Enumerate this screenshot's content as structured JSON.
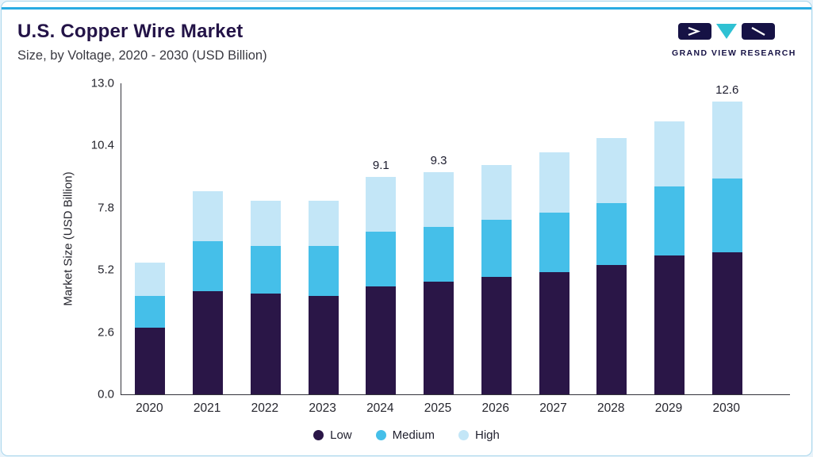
{
  "page": {
    "title": "U.S. Copper Wire Market",
    "subtitle": "Size, by Voltage, 2020 - 2030 (USD Billion)",
    "brand": "GRAND VIEW RESEARCH"
  },
  "colors": {
    "low": "#2a1647",
    "medium": "#45bfe9",
    "high": "#c3e6f7",
    "accent": "#29abe2",
    "title": "#231347"
  },
  "chart_data": {
    "type": "bar",
    "stacked": true,
    "title": "U.S. Copper Wire Market Size, by Voltage, 2020 - 2030 (USD Billion)",
    "categories": [
      "2020",
      "2021",
      "2022",
      "2023",
      "2024",
      "2025",
      "2026",
      "2027",
      "2028",
      "2029",
      "2030"
    ],
    "series": [
      {
        "name": "Low",
        "color_key": "low",
        "values": [
          2.8,
          4.3,
          4.2,
          4.1,
          4.5,
          4.7,
          4.9,
          5.1,
          5.4,
          5.8,
          6.1
        ]
      },
      {
        "name": "Medium",
        "color_key": "medium",
        "values": [
          1.3,
          2.1,
          2.0,
          2.1,
          2.3,
          2.3,
          2.4,
          2.5,
          2.6,
          2.9,
          3.2
        ]
      },
      {
        "name": "High",
        "color_key": "high",
        "values": [
          1.4,
          2.1,
          1.9,
          1.9,
          2.3,
          2.3,
          2.3,
          2.5,
          2.7,
          2.7,
          3.3
        ]
      }
    ],
    "total_labels": {
      "2024": "9.1",
      "2025": "9.3",
      "2030": "12.6"
    },
    "ylabel": "Market Size (USD Billion)",
    "yticks": [
      0.0,
      2.6,
      5.2,
      7.8,
      10.4,
      13.0
    ],
    "ylim": [
      0,
      13.0
    ],
    "legend": [
      "Low",
      "Medium",
      "High"
    ],
    "legend_position": "bottom",
    "grid": false
  }
}
